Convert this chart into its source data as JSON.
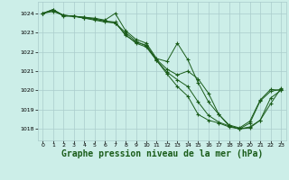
{
  "background_color": "#cceee8",
  "grid_color": "#aacccc",
  "line_color": "#1a5c1a",
  "marker_color": "#1a5c1a",
  "xlabel": "Graphe pression niveau de la mer (hPa)",
  "xlabel_fontsize": 7.0,
  "ylim": [
    1017.4,
    1024.6
  ],
  "xlim": [
    -0.5,
    23.5
  ],
  "yticks": [
    1018,
    1019,
    1020,
    1021,
    1022,
    1023,
    1024
  ],
  "xticks": [
    0,
    1,
    2,
    3,
    4,
    5,
    6,
    7,
    8,
    9,
    10,
    11,
    12,
    13,
    14,
    15,
    16,
    17,
    18,
    19,
    20,
    21,
    22,
    23
  ],
  "series": [
    [
      1024.0,
      1024.1,
      1023.9,
      1023.85,
      1023.8,
      1023.75,
      1023.65,
      1024.0,
      1023.1,
      1022.65,
      1022.45,
      1021.65,
      1021.5,
      1022.45,
      1021.6,
      1020.4,
      1019.4,
      1018.75,
      1018.2,
      1018.05,
      1018.4,
      1019.5,
      1020.05,
      1020.0
    ],
    [
      1024.0,
      1024.15,
      1023.9,
      1023.85,
      1023.75,
      1023.7,
      1023.6,
      1023.55,
      1022.85,
      1022.5,
      1022.35,
      1021.6,
      1021.1,
      1020.8,
      1021.0,
      1020.6,
      1019.85,
      1018.75,
      1018.15,
      1018.0,
      1018.1,
      1018.45,
      1019.3,
      1020.1
    ],
    [
      1024.0,
      1024.2,
      1023.9,
      1023.85,
      1023.75,
      1023.65,
      1023.55,
      1023.5,
      1022.9,
      1022.45,
      1022.25,
      1021.55,
      1020.95,
      1020.55,
      1020.2,
      1019.4,
      1018.7,
      1018.35,
      1018.15,
      1018.0,
      1018.05,
      1018.45,
      1019.6,
      1020.0
    ],
    [
      1024.0,
      1024.2,
      1023.85,
      1023.85,
      1023.8,
      1023.7,
      1023.6,
      1023.5,
      1023.0,
      1022.55,
      1022.3,
      1021.55,
      1020.85,
      1020.2,
      1019.7,
      1018.75,
      1018.45,
      1018.3,
      1018.1,
      1018.0,
      1018.3,
      1019.45,
      1019.95,
      1020.05
    ]
  ]
}
